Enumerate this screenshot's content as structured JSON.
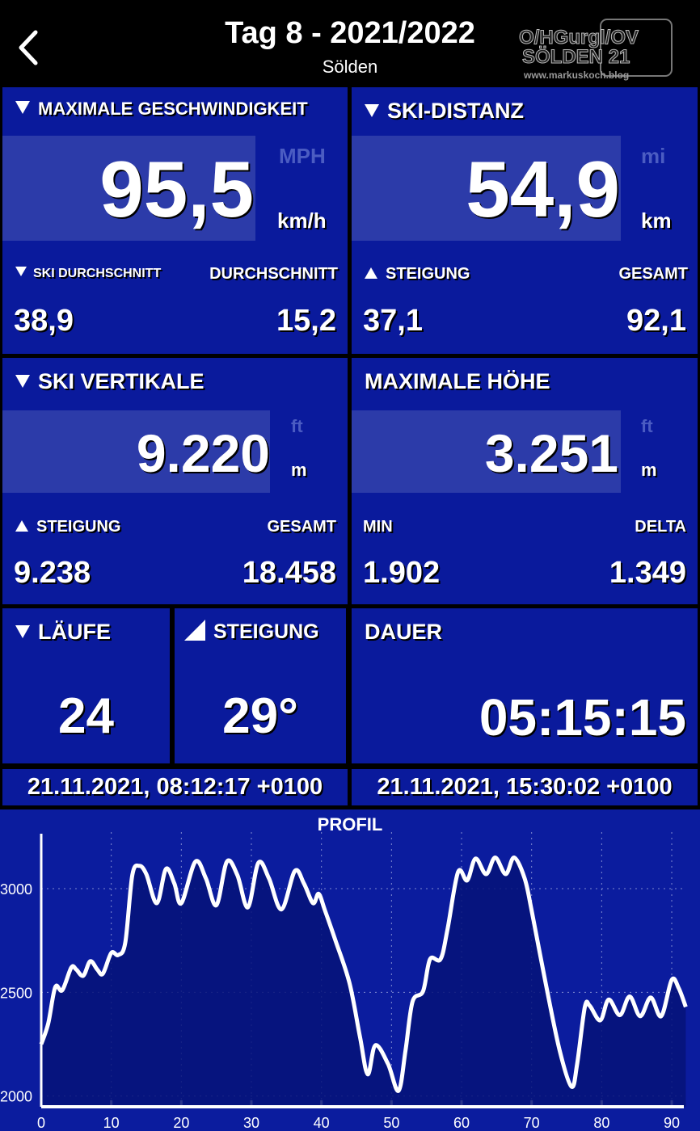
{
  "header": {
    "title": "Tag 8 - 2021/2022",
    "subtitle": "Sölden",
    "back_icon": "chevron-left-icon",
    "logo_text": [
      "O/HGurgl/OV",
      "SÖLDEN 21",
      "www.markuskoch.blog"
    ]
  },
  "colors": {
    "panel": "#0a1a9c",
    "value_box": "#2c3ba9",
    "dim_unit": "#4b5cc2",
    "chart_bg": "#0b1c9e",
    "chart_fill": "#061378"
  },
  "max_speed": {
    "label": "MAXIMALE GESCHWINDIGKEIT",
    "value": "95,5",
    "alt_unit": "MPH",
    "unit": "km/h",
    "left_label": "SKI DURCHSCHNITT",
    "left_value": "38,9",
    "right_label": "DURCHSCHNITT",
    "right_value": "15,2"
  },
  "distance": {
    "label": "SKI-DISTANZ",
    "value": "54,9",
    "alt_unit": "mi",
    "unit": "km",
    "left_label": "STEIGUNG",
    "left_value": "37,1",
    "right_label": "GESAMT",
    "right_value": "92,1"
  },
  "vertical": {
    "label": "SKI VERTIKALE",
    "value": "9.220",
    "alt_unit": "ft",
    "unit": "m",
    "left_label": "STEIGUNG",
    "left_value": "9.238",
    "right_label": "GESAMT",
    "right_value": "18.458"
  },
  "altitude": {
    "label": "MAXIMALE HÖHE",
    "value": "3.251",
    "alt_unit": "ft",
    "unit": "m",
    "left_label": "MIN",
    "left_value": "1.902",
    "right_label": "DELTA",
    "right_value": "1.349"
  },
  "runs": {
    "label": "LÄUFE",
    "value": "24"
  },
  "slope": {
    "label": "STEIGUNG",
    "value": "29°"
  },
  "duration": {
    "label": "DAUER",
    "value": "05:15:15"
  },
  "start_time": "21.11.2021, 08:12:17 +0100",
  "end_time": "21.11.2021, 15:30:02 +0100",
  "chart_data": {
    "type": "area",
    "title": "PROFIL",
    "xlim": [
      0,
      92
    ],
    "ylim": [
      1950,
      3250
    ],
    "xticks": [
      "0",
      "10",
      "20",
      "30",
      "40",
      "50",
      "60",
      "70",
      "80",
      "90"
    ],
    "yticks": [
      "2000",
      "2500",
      "3000"
    ],
    "grid": true,
    "x": [
      0,
      1,
      2,
      3,
      4.3,
      5,
      6,
      7,
      8,
      8.8,
      10,
      11,
      12,
      13,
      14,
      15,
      16.5,
      17.8,
      19,
      20,
      22,
      23.5,
      25,
      26.5,
      28,
      29.5,
      31,
      32.5,
      34.3,
      36.2,
      37.5,
      38.8,
      39.6,
      40.5,
      42,
      44,
      45.5,
      46.6,
      47.7,
      49.5,
      51,
      52,
      53,
      54.5,
      55.5,
      57,
      58,
      59.5,
      60.8,
      62,
      63.5,
      64.8,
      66.3,
      67.5,
      69,
      70,
      72,
      74,
      75.7,
      76.5,
      77.6,
      78.3,
      79.8,
      81,
      82.6,
      84,
      85.5,
      87,
      88.5,
      90,
      91,
      92
    ],
    "y": [
      2250,
      2350,
      2525,
      2510,
      2620,
      2610,
      2580,
      2650,
      2610,
      2590,
      2690,
      2680,
      2740,
      3065,
      3110,
      3070,
      2930,
      3095,
      3025,
      2930,
      3130,
      3050,
      2920,
      3130,
      3065,
      2910,
      3125,
      3050,
      2900,
      3085,
      3025,
      2930,
      2975,
      2895,
      2750,
      2545,
      2285,
      2105,
      2245,
      2155,
      2025,
      2220,
      2455,
      2505,
      2660,
      2660,
      2805,
      3080,
      3040,
      3145,
      3070,
      3150,
      3070,
      3150,
      3050,
      2895,
      2545,
      2220,
      2045,
      2155,
      2430,
      2435,
      2365,
      2465,
      2390,
      2480,
      2385,
      2475,
      2385,
      2560,
      2520,
      2430
    ]
  }
}
